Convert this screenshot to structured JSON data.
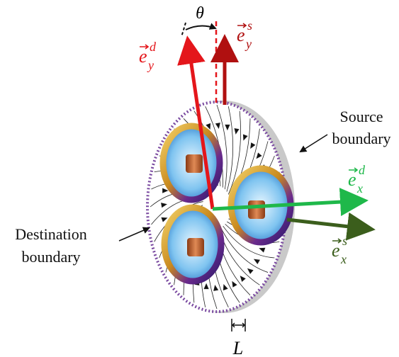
{
  "angle_label": "θ",
  "length_label": "L",
  "vectors": [
    {
      "base": "e",
      "sub": "y",
      "sup": "d"
    },
    {
      "base": "e",
      "sub": "y",
      "sup": "s"
    },
    {
      "base": "e",
      "sub": "x",
      "sup": "d"
    },
    {
      "base": "e",
      "sub": "x",
      "sup": "s"
    }
  ],
  "annotations": [
    {
      "lines": [
        "Source",
        "boundary"
      ]
    },
    {
      "lines": [
        "Destination",
        "boundary"
      ]
    }
  ]
}
